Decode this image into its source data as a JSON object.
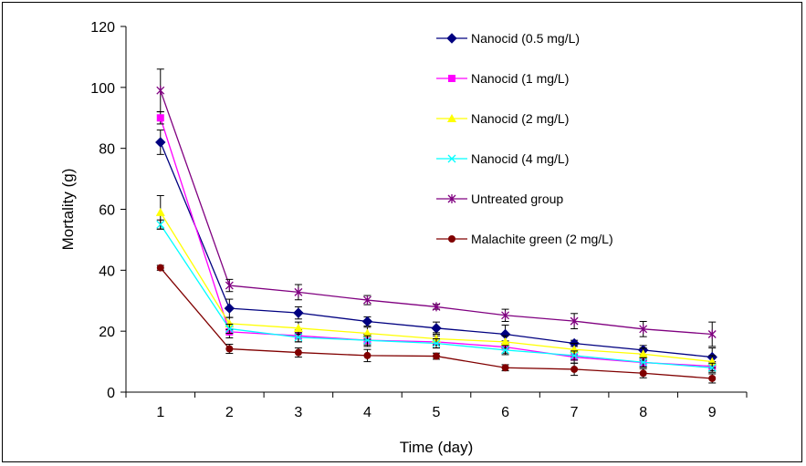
{
  "chart_data": {
    "type": "line",
    "title": "",
    "xlabel": "Time (day)",
    "ylabel": "Mortality (g)",
    "x": [
      1,
      2,
      3,
      4,
      5,
      6,
      7,
      8,
      9
    ],
    "ylim": [
      0,
      120
    ],
    "yticks": [
      0,
      20,
      40,
      60,
      80,
      100,
      120
    ],
    "grid": false,
    "legend_position": "top-right",
    "series": [
      {
        "name": "Nanocid (0.5 mg/L)",
        "color": "#000080",
        "marker": "diamond",
        "values": [
          82,
          27.5,
          26,
          23.2,
          21,
          19,
          16,
          13.8,
          11.5
        ],
        "errors": [
          4,
          3,
          2,
          1.5,
          2,
          3,
          1,
          1.5,
          3
        ]
      },
      {
        "name": "Nanocid (1 mg/L)",
        "color": "#FF00FF",
        "marker": "square",
        "values": [
          90,
          19.8,
          18.5,
          17,
          16.5,
          14.8,
          11.5,
          9.7,
          8.5
        ],
        "errors": [
          2,
          2,
          2,
          2,
          2,
          2,
          2,
          1.5,
          1.5
        ]
      },
      {
        "name": "Nanocid (2 mg/L)",
        "color": "#FFFF00",
        "marker": "triangle",
        "values": [
          59,
          22.5,
          21,
          19.3,
          17.5,
          16.5,
          14,
          12.5,
          10
        ],
        "errors": [
          5.5,
          2,
          2,
          2,
          2,
          2,
          2,
          2,
          2
        ]
      },
      {
        "name": "Nanocid (4 mg/L)",
        "color": "#00FFFF",
        "marker": "x",
        "values": [
          55,
          20.8,
          18,
          17,
          16,
          13.8,
          12,
          9.8,
          8
        ],
        "errors": [
          1.5,
          1.5,
          1.5,
          1.5,
          1.5,
          1.5,
          1.5,
          1.5,
          1.5
        ]
      },
      {
        "name": "Untreated group",
        "color": "#800080",
        "marker": "star",
        "values": [
          99,
          35,
          32.8,
          30.2,
          28,
          25.2,
          23.3,
          20.7,
          19
        ],
        "errors": [
          7,
          2,
          2.5,
          1.5,
          0.8,
          2,
          2.5,
          2.5,
          4
        ]
      },
      {
        "name": "Malachite green (2 mg/L)",
        "color": "#800000",
        "marker": "circle",
        "values": [
          40.8,
          14.2,
          13,
          12,
          11.8,
          8,
          7.5,
          6.2,
          4.5
        ],
        "errors": [
          0.8,
          1.5,
          1.5,
          2,
          1,
          1,
          2,
          1.5,
          1.5
        ]
      }
    ]
  }
}
